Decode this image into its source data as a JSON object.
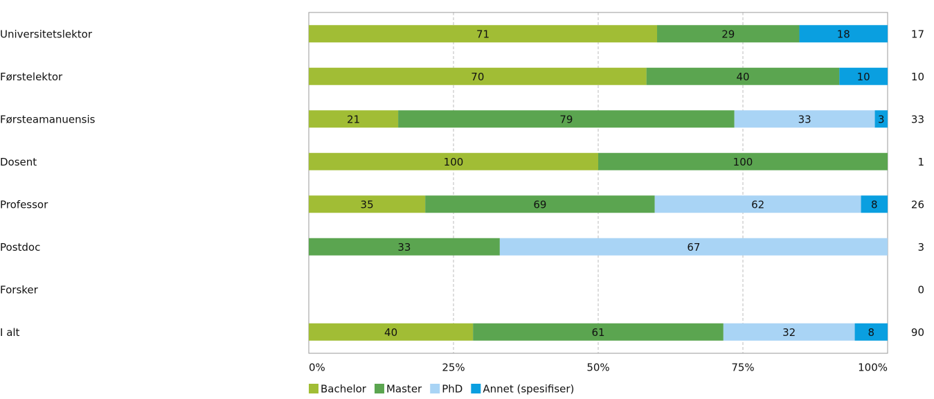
{
  "chart_data": {
    "type": "bar",
    "orientation": "horizontal",
    "stacking": "percent",
    "categories": [
      "Universitetslektor",
      "Førstelektor",
      "Førsteamanuensis",
      "Dosent",
      "Professor",
      "Postdoc",
      "Forsker",
      "I alt"
    ],
    "series": [
      {
        "name": "Bachelor",
        "color": "#a1bd35",
        "values": [
          71,
          70,
          21,
          100,
          35,
          null,
          null,
          40
        ]
      },
      {
        "name": "Master",
        "color": "#5ba550",
        "values": [
          29,
          40,
          79,
          100,
          69,
          33,
          null,
          61
        ]
      },
      {
        "name": "PhD",
        "color": "#a9d4f5",
        "values": [
          null,
          null,
          33,
          null,
          62,
          67,
          null,
          32
        ]
      },
      {
        "name": "Annet (spesifiser)",
        "color": "#0a9fe0",
        "values": [
          18,
          10,
          3,
          null,
          8,
          null,
          null,
          8
        ]
      }
    ],
    "row_totals": [
      17,
      10,
      33,
      1,
      26,
      3,
      0,
      90
    ],
    "xlim": [
      0,
      100
    ],
    "xticks": [
      {
        "value": 0,
        "label": "0%"
      },
      {
        "value": 25,
        "label": "25%"
      },
      {
        "value": 50,
        "label": "50%"
      },
      {
        "value": 75,
        "label": "75%"
      },
      {
        "value": 100,
        "label": "100%"
      }
    ],
    "grid": true,
    "legend": "bottom"
  }
}
